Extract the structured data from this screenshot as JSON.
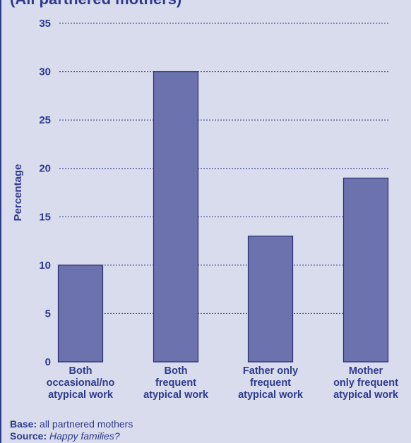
{
  "header": {
    "cut_title": "(All partnered mothers)"
  },
  "chart_data": {
    "type": "bar",
    "categories": [
      [
        "Both",
        "occasional/no",
        "atypical work"
      ],
      [
        "Both",
        "frequent",
        "atypical work"
      ],
      [
        "Father only",
        "frequent",
        "atypical work"
      ],
      [
        "Mother",
        "only frequent",
        "atypical work"
      ]
    ],
    "values": [
      10,
      30,
      13,
      19
    ],
    "ylabel": "Percentage",
    "xlabel": "",
    "ylim": [
      0,
      35
    ],
    "yticks": [
      0,
      5,
      10,
      15,
      20,
      25,
      30,
      35
    ],
    "grid": "horizontal dotted",
    "colors": {
      "bar": "#6b72ae",
      "bar_edge": "#2a2f6e",
      "text": "#2e3a8c",
      "background": "#d9dcec"
    }
  },
  "footer": {
    "base_label": "Base:",
    "base_text": "all partnered mothers",
    "source_label": "Source:",
    "source_text": "Happy families?"
  }
}
